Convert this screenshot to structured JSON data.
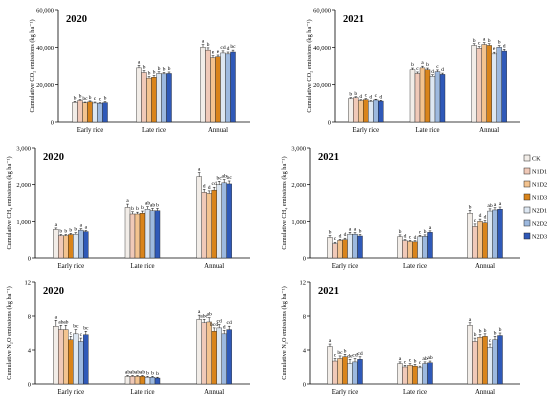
{
  "colors": {
    "CK": "#f2ede8",
    "N1D1": "#f0c9b8",
    "N1D2": "#f3c38f",
    "N1D3": "#d9841b",
    "N2D1": "#dde7f2",
    "N2D2": "#9db9df",
    "N2D3": "#2f59b8"
  },
  "legend": [
    "CK",
    "N1D1",
    "N1D2",
    "N1D3",
    "N2D1",
    "N2D2",
    "N2D3"
  ],
  "chart_data": [
    {
      "type": "bar",
      "panel_label": "2020",
      "ylabel": "Cumulative CO₂ emissions  (kg ha⁻¹)",
      "ylim": [
        0,
        60000
      ],
      "yticks": [
        "0",
        "20,000",
        "40,000",
        "60,000"
      ],
      "categories": [
        "Early rice",
        "Late rice",
        "Annual"
      ],
      "values": [
        [
          10500,
          11500,
          10300,
          10800,
          10200,
          10000,
          10400
        ],
        [
          29000,
          26500,
          23500,
          24000,
          26000,
          25800,
          26000
        ],
        [
          40000,
          38500,
          34500,
          35000,
          37000,
          36500,
          37500
        ]
      ],
      "errors": [
        [
          600,
          500,
          400,
          500,
          500,
          400,
          500
        ],
        [
          1300,
          1000,
          800,
          900,
          900,
          700,
          800
        ],
        [
          1400,
          1200,
          1000,
          900,
          1100,
          1000,
          1000
        ]
      ],
      "letters": [
        [
          "b",
          "b",
          "bc",
          "b",
          "c",
          "c",
          "b"
        ],
        [
          "a",
          "b",
          "b",
          "b",
          "b",
          "b",
          "b"
        ],
        [
          "a",
          "b",
          "e",
          "e",
          "cd",
          "d",
          "bc"
        ]
      ]
    },
    {
      "type": "bar",
      "panel_label": "2021",
      "ylabel": "Cumulative CO₂ emissions  (kg ha⁻¹)",
      "ylim": [
        0,
        60000
      ],
      "yticks": [
        "0",
        "20,000",
        "40,000",
        "60,000"
      ],
      "categories": [
        "Early rice",
        "Late rice",
        "Annual"
      ],
      "values": [
        [
          12500,
          13000,
          11500,
          12000,
          11000,
          11800,
          11200
        ],
        [
          28000,
          26000,
          29000,
          28000,
          24500,
          27000,
          25500
        ],
        [
          41000,
          39500,
          41500,
          41000,
          36500,
          40000,
          38000
        ]
      ],
      "errors": [
        [
          500,
          500,
          400,
          500,
          500,
          400,
          400
        ],
        [
          900,
          800,
          900,
          900,
          800,
          900,
          700
        ],
        [
          900,
          900,
          1000,
          900,
          900,
          900,
          900
        ]
      ],
      "letters": [
        [
          "b",
          "b",
          "d",
          "c",
          "d",
          "c",
          "d"
        ],
        [
          "b",
          "c",
          "a",
          "b",
          "d",
          "c",
          "d"
        ],
        [
          "b",
          "c",
          "a",
          "b",
          "e",
          "b",
          "d"
        ]
      ]
    },
    {
      "type": "bar",
      "panel_label": "2020",
      "ylabel": "Cumulative CH₄ emissions  (kg ha⁻¹)",
      "ylim": [
        0,
        3000
      ],
      "yticks": [
        "0",
        "1,000",
        "2,000",
        "3,000"
      ],
      "categories": [
        "Early rice",
        "Late rice",
        "Annual"
      ],
      "values": [
        [
          780,
          610,
          610,
          640,
          650,
          760,
          720
        ],
        [
          1380,
          1200,
          1200,
          1220,
          1330,
          1290,
          1290
        ],
        [
          2220,
          1790,
          1760,
          1850,
          2000,
          2050,
          2020
        ]
      ],
      "errors": [
        [
          40,
          30,
          30,
          30,
          40,
          40,
          30
        ],
        [
          90,
          60,
          50,
          60,
          70,
          60,
          60
        ],
        [
          110,
          80,
          70,
          80,
          90,
          90,
          80
        ]
      ],
      "letters": [
        [
          "a",
          "b",
          "b",
          "b",
          "b",
          "a",
          "a"
        ],
        [
          "a",
          "b",
          "b",
          "b",
          "ab",
          "ab",
          "b"
        ],
        [
          "a",
          "d",
          "d",
          "cd",
          "bc",
          "ab",
          "bc"
        ]
      ]
    },
    {
      "type": "bar",
      "panel_label": "2021",
      "ylabel": "Cumulative CH₄ emissions  (kg ha⁻¹)",
      "ylim": [
        0,
        3000
      ],
      "yticks": [
        "0",
        "1,000",
        "2,000",
        "3,000"
      ],
      "categories": [
        "Early rice",
        "Late rice",
        "Annual"
      ],
      "values": [
        [
          560,
          390,
          480,
          500,
          650,
          650,
          600
        ],
        [
          580,
          470,
          450,
          440,
          580,
          590,
          700
        ],
        [
          1220,
          860,
          1000,
          960,
          1280,
          1310,
          1330
        ]
      ],
      "errors": [
        [
          50,
          40,
          30,
          40,
          50,
          40,
          40
        ],
        [
          50,
          30,
          30,
          30,
          40,
          40,
          40
        ],
        [
          80,
          70,
          60,
          60,
          60,
          60,
          60
        ]
      ],
      "letters": [
        [
          "b",
          "c",
          "d",
          "d",
          "a",
          "a",
          "b"
        ],
        [
          "b",
          "d",
          "c",
          "d",
          "c",
          "b",
          "a"
        ],
        [
          "b",
          "c",
          "d",
          "d",
          "ab",
          "a",
          "a"
        ]
      ]
    },
    {
      "type": "bar",
      "panel_label": "2020",
      "ylabel": "Cumulative N₂O emissions  (kg ha⁻¹)",
      "ylim": [
        0,
        12
      ],
      "yticks": [
        "0",
        "4",
        "8",
        "12"
      ],
      "categories": [
        "Early rice",
        "Late rice",
        "Annual"
      ],
      "values": [
        [
          6.8,
          6.4,
          6.4,
          5.2,
          5.9,
          5.0,
          5.8
        ],
        [
          0.9,
          0.9,
          0.9,
          0.9,
          0.8,
          0.8,
          0.7
        ],
        [
          7.6,
          7.2,
          7.3,
          6.2,
          6.6,
          5.9,
          6.4
        ]
      ],
      "errors": [
        [
          0.7,
          0.5,
          0.5,
          0.4,
          0.5,
          0.4,
          0.4
        ],
        [
          0.1,
          0.1,
          0.1,
          0.1,
          0.1,
          0.1,
          0.1
        ],
        [
          0.5,
          0.4,
          0.5,
          0.4,
          0.4,
          0.4,
          0.4
        ]
      ],
      "letters": [
        [
          "a",
          "ab",
          "ab",
          "c",
          "bc",
          "c",
          "bc"
        ],
        [
          "ab",
          "ab",
          "ab",
          "ab",
          "b",
          "b",
          "b"
        ],
        [
          "a",
          "abc",
          "ab",
          "bcd",
          "cd",
          "d",
          "cd"
        ]
      ]
    },
    {
      "type": "bar",
      "panel_label": "2021",
      "ylabel": "Cumulative N₂O emissions  (kg ha⁻¹)",
      "ylim": [
        0,
        12
      ],
      "yticks": [
        "0",
        "4",
        "8",
        "12"
      ],
      "categories": [
        "Early rice",
        "Late rice",
        "Annual"
      ],
      "values": [
        [
          4.4,
          2.7,
          3.0,
          3.2,
          2.4,
          2.6,
          2.9
        ],
        [
          2.4,
          2.0,
          2.2,
          2.1,
          1.9,
          2.4,
          2.5
        ],
        [
          6.9,
          5.0,
          5.5,
          5.6,
          4.3,
          5.2,
          5.7
        ]
      ],
      "errors": [
        [
          0.3,
          0.3,
          0.3,
          0.3,
          0.5,
          0.4,
          0.3
        ],
        [
          0.2,
          0.2,
          0.2,
          0.2,
          0.2,
          0.2,
          0.2
        ],
        [
          0.3,
          0.4,
          0.3,
          0.3,
          0.4,
          0.4,
          0.3
        ]
      ],
      "letters": [
        [
          "a",
          "c",
          "bc",
          "b",
          "de",
          "cd",
          "cd"
        ],
        [
          "a",
          "c",
          "c",
          "b",
          "c",
          "ab",
          "ab"
        ],
        [
          "a",
          "b",
          "b",
          "b",
          "c",
          "b",
          "b"
        ]
      ]
    }
  ]
}
